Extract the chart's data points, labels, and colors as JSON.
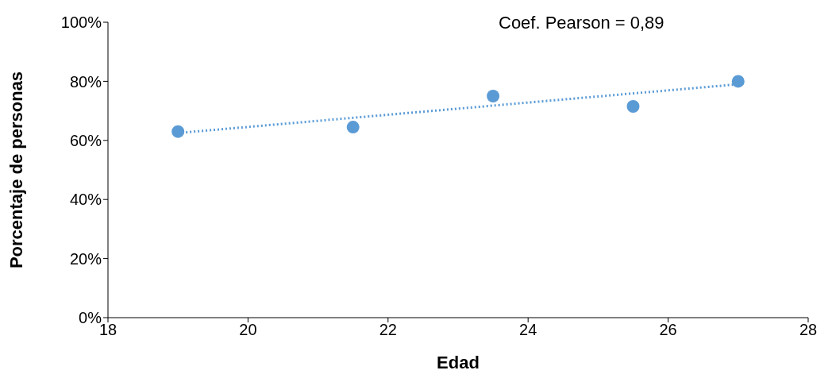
{
  "chart_data": {
    "type": "scatter",
    "xlabel": "Edad",
    "ylabel": "Porcentaje de personas",
    "annotations": [
      "Coef. Pearson = 0,89"
    ],
    "xlim": [
      18,
      28
    ],
    "xticks": [
      18,
      20,
      22,
      24,
      26,
      28
    ],
    "ylim": [
      0,
      100
    ],
    "yticks": [
      {
        "value": 0,
        "label": "0%"
      },
      {
        "value": 20,
        "label": "20%"
      },
      {
        "value": 40,
        "label": "40%"
      },
      {
        "value": 60,
        "label": "60%"
      },
      {
        "value": 80,
        "label": "80%"
      },
      {
        "value": 100,
        "label": "100%"
      }
    ],
    "grid": false,
    "legend": false,
    "marker": "circle",
    "series": [
      {
        "color": "#5b9bd5",
        "x": [
          19,
          21.5,
          23.5,
          25.5,
          27
        ],
        "values": [
          63,
          64.5,
          75,
          71.5,
          80
        ]
      },
      {
        "type": "line",
        "color": "#5b9bd5",
        "line_style": "dotted",
        "marker": "none",
        "x": [
          19,
          27
        ],
        "values": [
          62.5,
          79
        ]
      }
    ]
  }
}
